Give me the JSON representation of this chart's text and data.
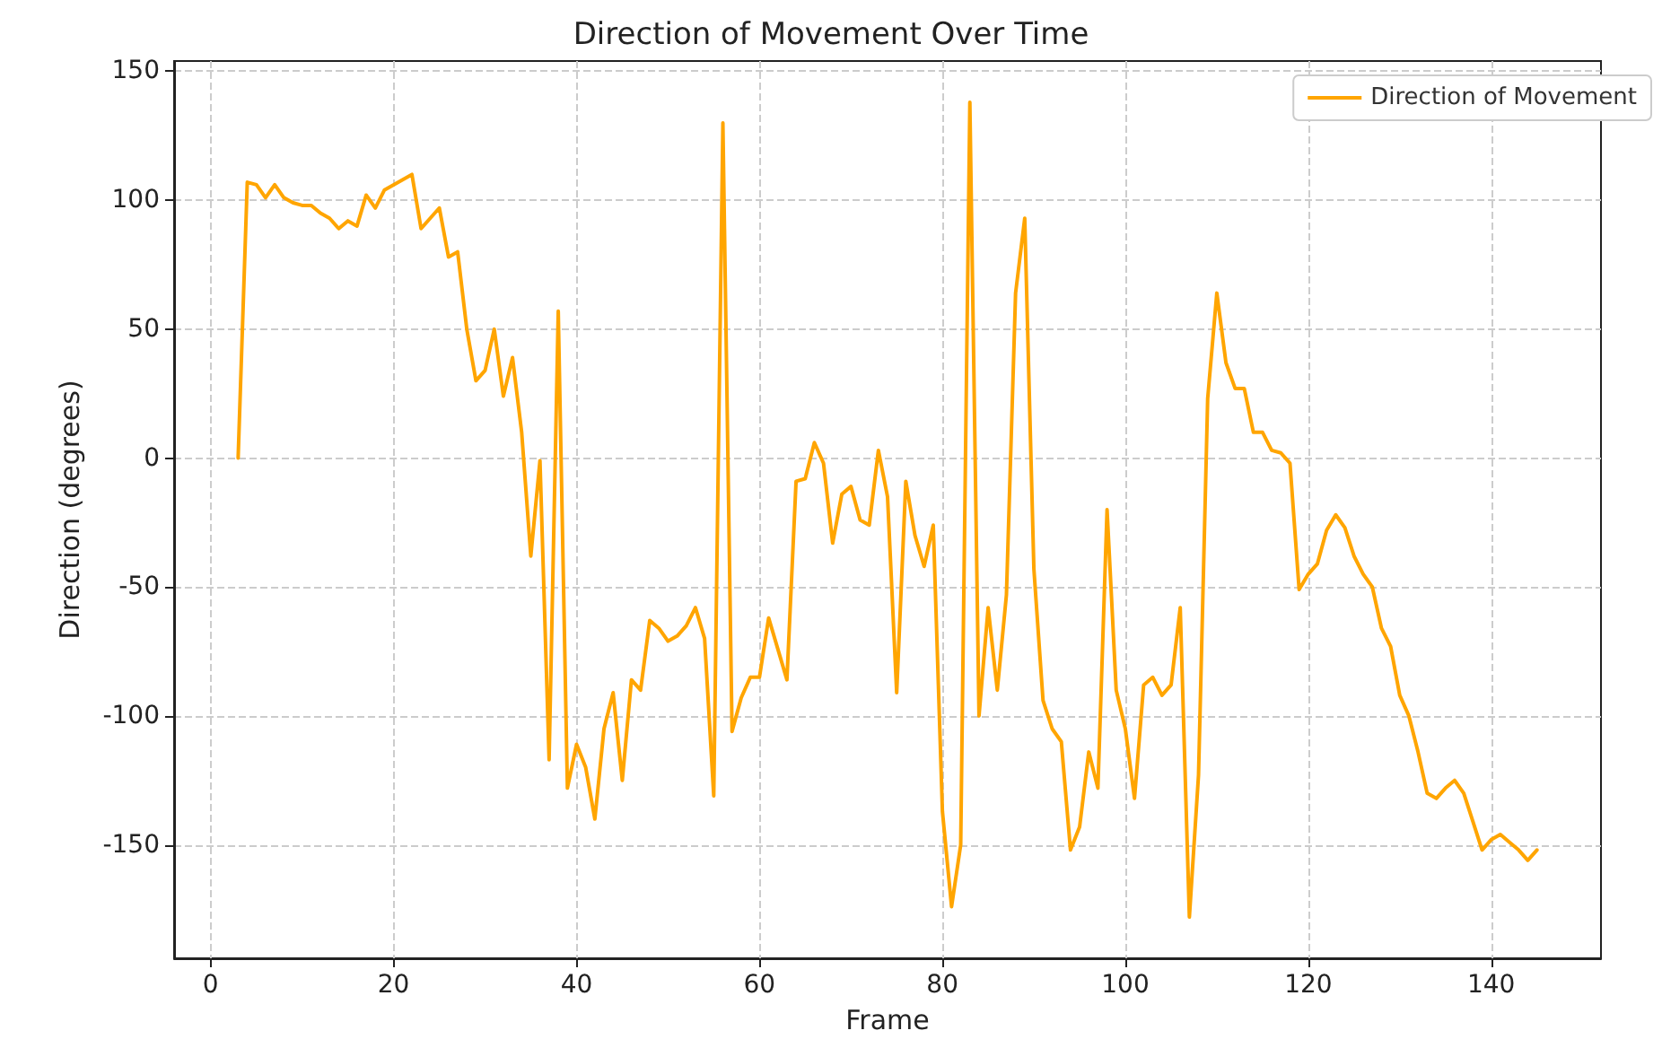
{
  "chart_data": {
    "type": "line",
    "title": "Direction of Movement Over Time",
    "xlabel": "Frame",
    "ylabel": "Direction (degrees)",
    "x": [
      3,
      4,
      5,
      6,
      7,
      8,
      9,
      10,
      11,
      12,
      13,
      14,
      15,
      16,
      17,
      18,
      19,
      20,
      21,
      22,
      23,
      24,
      25,
      26,
      27,
      28,
      29,
      30,
      31,
      32,
      33,
      34,
      35,
      36,
      37,
      38,
      39,
      40,
      41,
      42,
      43,
      44,
      45,
      46,
      47,
      48,
      49,
      50,
      51,
      52,
      53,
      54,
      55,
      56,
      57,
      58,
      59,
      60,
      61,
      62,
      63,
      64,
      65,
      66,
      67,
      68,
      69,
      70,
      71,
      72,
      73,
      74,
      75,
      76,
      77,
      78,
      79,
      80,
      81,
      82,
      83,
      84,
      85,
      86,
      87,
      88,
      89,
      90,
      91,
      92,
      93,
      94,
      95,
      96,
      97,
      98,
      99,
      100,
      101,
      102,
      103,
      104,
      105,
      106,
      107,
      108,
      109,
      110,
      111,
      112,
      113,
      114,
      115,
      116,
      117,
      118,
      119,
      120,
      121,
      122,
      123,
      124,
      125,
      126,
      127,
      128,
      129,
      130,
      131,
      132,
      133,
      134,
      135,
      136,
      137,
      138,
      139,
      140,
      141,
      142,
      143,
      144,
      145
    ],
    "series": [
      {
        "name": "Direction of Movement",
        "color": "#ffa500",
        "values": [
          0,
          107,
          106,
          101,
          106,
          101,
          99,
          98,
          98,
          95,
          93,
          89,
          92,
          90,
          102,
          97,
          104,
          106,
          108,
          110,
          89,
          93,
          97,
          78,
          80,
          50,
          30,
          34,
          50,
          24,
          39,
          10,
          -38,
          -1,
          -117,
          57,
          -128,
          -111,
          -120,
          -140,
          -105,
          -91,
          -125,
          -86,
          -90,
          -63,
          -66,
          -71,
          -69,
          -65,
          -58,
          -70,
          -131,
          130,
          -106,
          -93,
          -85,
          -85,
          -62,
          -74,
          -86,
          -9,
          -8,
          6,
          -2,
          -33,
          -14,
          -11,
          -24,
          -26,
          3,
          -15,
          -91,
          -9,
          -30,
          -42,
          -26,
          -137,
          -174,
          -150,
          138,
          -100,
          -58,
          -90,
          -53,
          64,
          93,
          -43,
          -94,
          -105,
          -110,
          -152,
          -143,
          -114,
          -128,
          -20,
          -90,
          -105,
          -132,
          -88,
          -85,
          -92,
          -88,
          -58,
          -178,
          -123,
          23,
          64,
          37,
          27,
          27,
          10,
          10,
          3,
          2,
          -2,
          -51,
          -45,
          -41,
          -28,
          -22,
          -27,
          -38,
          -45,
          -50,
          -66,
          -73,
          -92,
          -100,
          -114,
          -130,
          -132,
          -128,
          -125,
          -130,
          -141,
          -152,
          -148,
          -146,
          -149,
          -152,
          -156,
          -152
        ]
      }
    ],
    "xlim": [
      -4,
      152
    ],
    "xticks": [
      0,
      20,
      40,
      60,
      80,
      100,
      120,
      140
    ],
    "ylim": [
      -194,
      154
    ],
    "yticks": [
      -150,
      -100,
      -50,
      0,
      50,
      100,
      150
    ],
    "grid": true,
    "legend": "top right",
    "marker": "none",
    "line_style": "solid"
  }
}
